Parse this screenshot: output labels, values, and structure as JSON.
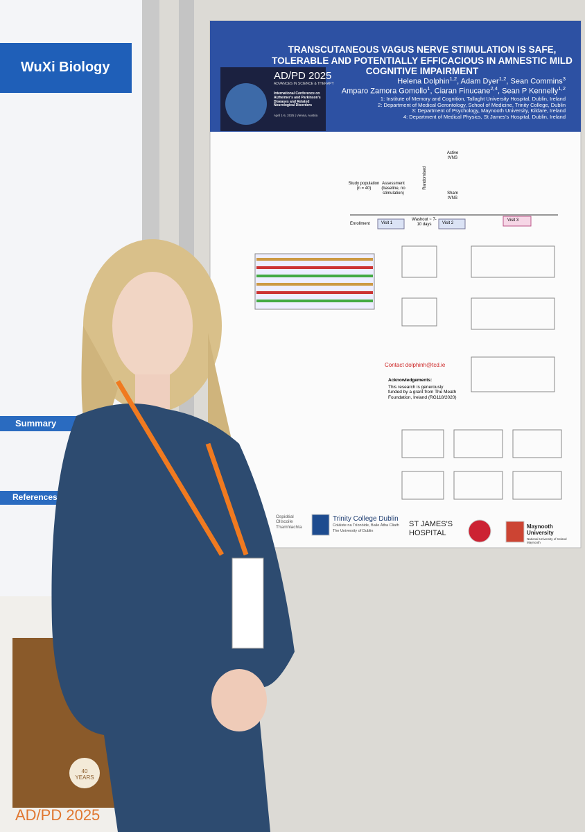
{
  "left_poster": {
    "title": "WuXi Biology",
    "summary": "Summary",
    "references": "References"
  },
  "poster": {
    "title": "TRANSCUTANEOUS VAGUS NERVE STIMULATION IS SAFE, TOLERABLE AND POTENTIALLY EFFICACIOUS IN AMNESTIC MILD COGNITIVE IMPAIRMENT",
    "author_lines": [
      [
        {
          "name": "Helena Dolphin",
          "affil": "1,2"
        },
        {
          "name": "Adam Dyer",
          "affil": "1,2"
        },
        {
          "name": "Sean Commins",
          "affil": "3"
        }
      ],
      [
        {
          "name": "Amparo Zamora Gomollo",
          "affil": "1"
        },
        {
          "name": "Ciaran Finucane",
          "affil": "2,4"
        },
        {
          "name": "Sean P Kennelly",
          "affil": "1,2"
        }
      ]
    ],
    "affiliations": [
      "1: Institute of Memory and Cognition, Tallaght University Hospital, Dublin, Ireland",
      "2: Department of Medical Gerontology, School of Medicine, Trinity College, Dublin",
      "3: Department of Psychology, Maynooth University, Kildare, Ireland",
      "4: Department of Medical Physics, St James's Hospital, Dublin, Ireland"
    ],
    "banner": {
      "title": "AD/PD 2025",
      "subtitle": "ADVANCES IN SCIENCE & THERAPY",
      "conference": "International Conference on Alzheimer's and Parkinson's Diseases and Related Neurological Disorders",
      "dates": "April 1-5, 2025 | Vienna, Austria"
    },
    "flow": {
      "population": "Study population (n = 40)",
      "assessment": "Assessment (baseline, no stimulation)",
      "randomised": "Randomised",
      "active": "Active tVNS",
      "sham": "Sham tVNS",
      "enrollment": "Enrollment",
      "visit1": "Visit 1",
      "washout": "Washout ~ 7-10 days",
      "visit2": "Visit 2",
      "visit3": "Visit 3"
    },
    "contact": "Contact dolphinh@tcd.ie",
    "acknowledgements": {
      "heading": "Acknowledgements:",
      "text": "This research is generously funded by a grant from The Meath Foundation, Ireland (RG118/2020)"
    },
    "logos": {
      "tallaght": "Ospidéal Ollscoile Thamhlachta",
      "tcd": "Trinity College Dublin",
      "tcd_irish": "Coláiste na Tríonóide, Baile Átha Cliath",
      "tcd_sub": "The University of Dublin",
      "stjames": "ST JAMES'S HOSPITAL",
      "maynooth": "Maynooth University",
      "maynooth_sub": "National University of Ireland Maynooth"
    }
  },
  "bag": {
    "title": "AD/PD 2025",
    "anniversary": "40 YEARS"
  }
}
